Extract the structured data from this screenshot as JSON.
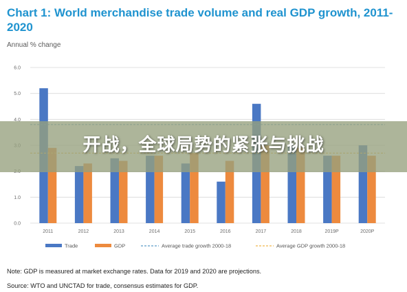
{
  "title": "Chart 1: World merchandise trade volume and real GDP growth, 2011-2020",
  "subtitle": "Annual % change",
  "notes": {
    "note": "Note: GDP is measured at market exchange rates. Data for 2019 and 2020 are projections.",
    "source": "Source: WTO and UNCTAD for trade, consensus estimates for GDP."
  },
  "overlay_text": "开战，全球局势的紧张与挑战",
  "colors": {
    "trade": "#4a78c4",
    "gdp": "#ed8a3e",
    "title": "#1f93cf"
  },
  "chart_data": {
    "type": "bar",
    "categories": [
      "2011",
      "2012",
      "2013",
      "2014",
      "2015",
      "2016",
      "2017",
      "2018",
      "2019P",
      "2020P"
    ],
    "series": [
      {
        "name": "Trade",
        "values": [
          5.2,
          2.2,
          2.5,
          2.6,
          2.3,
          1.6,
          4.6,
          3.0,
          2.6,
          3.0
        ]
      },
      {
        "name": "GDP",
        "values": [
          2.9,
          2.3,
          2.4,
          2.6,
          2.7,
          2.4,
          3.0,
          2.9,
          2.6,
          2.6
        ]
      }
    ],
    "reference_lines": [
      {
        "name": "Average trade growth 2000-18",
        "value": 3.8
      },
      {
        "name": "Average GDP growth 2000-18",
        "value": 2.7
      }
    ],
    "ylim": [
      0,
      6
    ],
    "yticks": [
      "0.0",
      "1.0",
      "2.0",
      "3.0",
      "4.0",
      "5.0",
      "6.0"
    ],
    "xlabel": "",
    "ylabel": "",
    "grid": true,
    "legend_position": "bottom"
  }
}
